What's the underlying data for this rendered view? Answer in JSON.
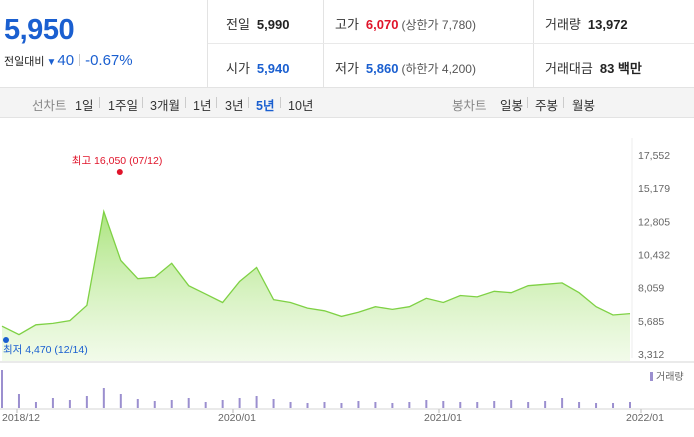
{
  "summary": {
    "price": "5,950",
    "change_label": "전일대비",
    "change_arrow": "▼",
    "change_value": "40",
    "change_rate": "-0.67%"
  },
  "stats": {
    "prev_close": {
      "label": "전일",
      "value": "5,990"
    },
    "high": {
      "label": "고가",
      "value": "6,070",
      "sub": "(상한가 7,780)"
    },
    "volume": {
      "label": "거래량",
      "value": "13,972"
    },
    "open": {
      "label": "시가",
      "value": "5,940"
    },
    "low": {
      "label": "저가",
      "value": "5,860",
      "sub": "(하한가 4,200)"
    },
    "amount": {
      "label": "거래대금",
      "value": "83 백만"
    }
  },
  "line_tabs": {
    "label": "선차트",
    "items": [
      "1일",
      "1주일",
      "3개월",
      "1년",
      "3년",
      "5년",
      "10년"
    ],
    "selected": "5년"
  },
  "candle_tabs": {
    "label": "봉차트",
    "items": [
      "일봉",
      "주봉",
      "월봉"
    ]
  },
  "colors": {
    "price_down": "#1a5fd0",
    "price_up": "#e0142a",
    "line": "#7fd145",
    "volume": "#9b8fcf"
  },
  "chart_data": {
    "type": "area",
    "x": [
      "2018-12",
      "2019-01",
      "2019-02",
      "2019-03",
      "2019-04",
      "2019-05",
      "2019-06",
      "2019-07",
      "2019-08",
      "2019-09",
      "2019-10",
      "2019-11",
      "2019-12",
      "2020-01",
      "2020-02",
      "2020-03",
      "2020-04",
      "2020-05",
      "2020-06",
      "2020-07",
      "2020-08",
      "2020-09",
      "2020-10",
      "2020-11",
      "2020-12",
      "2021-01",
      "2021-02",
      "2021-03",
      "2021-04",
      "2021-05",
      "2021-06",
      "2021-07",
      "2021-08",
      "2021-09",
      "2021-10",
      "2021-11",
      "2021-12",
      "2022-01"
    ],
    "series": [
      {
        "values": [
          5300,
          4700,
          5400,
          5500,
          5700,
          6800,
          13500,
          10000,
          8700,
          8800,
          9800,
          8200,
          7600,
          7000,
          8500,
          9500,
          7200,
          7000,
          6600,
          6400,
          6000,
          6300,
          6700,
          6500,
          6700,
          7300,
          7000,
          7500,
          7400,
          7800,
          7700,
          8200,
          8300,
          8400,
          7700,
          6700,
          6100,
          6200
        ]
      }
    ],
    "volume": [
      38,
      14,
      6,
      10,
      8,
      12,
      20,
      14,
      9,
      7,
      8,
      10,
      6,
      8,
      10,
      12,
      9,
      6,
      5,
      6,
      5,
      7,
      6,
      5,
      6,
      8,
      7,
      6,
      6,
      7,
      8,
      6,
      7,
      10,
      6,
      5,
      5,
      6
    ],
    "high_marker": {
      "label": "최고",
      "value": "16,050",
      "date": "(07/12)",
      "x": "2019-07"
    },
    "low_marker": {
      "label": "최저",
      "value": "4,470",
      "date": "(12/14)",
      "x": "2018-12"
    },
    "y_ticks": [
      "17,552",
      "15,179",
      "12,805",
      "10,432",
      "8,059",
      "5,685",
      "3,312"
    ],
    "x_ticks": [
      "2018/12",
      "2020/01",
      "2021/01",
      "2022/01"
    ],
    "ylim": [
      3312,
      17552
    ],
    "volume_label": "거래량",
    "grid": false
  }
}
